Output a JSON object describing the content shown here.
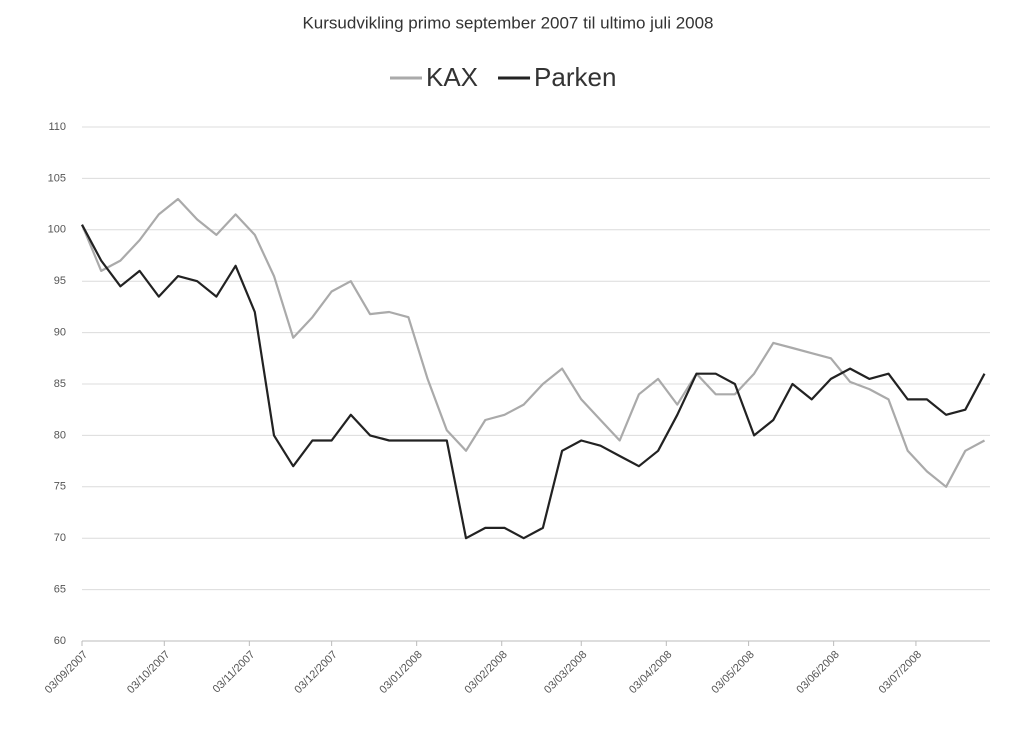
{
  "chart_data": {
    "type": "line",
    "title": "Kursudvikling primo september 2007 til ultimo juli 2008",
    "x": [
      "2007-09-03",
      "2007-09-10",
      "2007-09-17",
      "2007-09-24",
      "2007-10-01",
      "2007-10-08",
      "2007-10-15",
      "2007-10-22",
      "2007-10-29",
      "2007-11-05",
      "2007-11-12",
      "2007-11-19",
      "2007-11-26",
      "2007-12-03",
      "2007-12-10",
      "2007-12-17",
      "2007-12-24",
      "2007-12-31",
      "2008-01-07",
      "2008-01-14",
      "2008-01-21",
      "2008-01-28",
      "2008-02-04",
      "2008-02-11",
      "2008-02-18",
      "2008-02-25",
      "2008-03-03",
      "2008-03-10",
      "2008-03-17",
      "2008-03-24",
      "2008-03-31",
      "2008-04-07",
      "2008-04-14",
      "2008-04-21",
      "2008-04-28",
      "2008-05-05",
      "2008-05-12",
      "2008-05-19",
      "2008-05-26",
      "2008-06-02",
      "2008-06-09",
      "2008-06-16",
      "2008-06-23",
      "2008-06-30",
      "2008-07-07",
      "2008-07-14",
      "2008-07-21",
      "2008-07-28"
    ],
    "series": [
      {
        "name": "KAX",
        "color": "#aaaaaa",
        "values": [
          100.5,
          96,
          97,
          99,
          101.5,
          103,
          101,
          99.5,
          101.5,
          99.5,
          95.5,
          89.5,
          91.5,
          94,
          95,
          91.8,
          92,
          91.5,
          85.5,
          80.5,
          78.5,
          81.5,
          82,
          83,
          85,
          86.5,
          83.5,
          81.5,
          79.5,
          84,
          85.5,
          83,
          86,
          84,
          84,
          86,
          89,
          88.5,
          88,
          87.5,
          85.2,
          84.5,
          83.5,
          78.5,
          76.5,
          75,
          78.5,
          79.5
        ]
      },
      {
        "name": "Parken",
        "color": "#222222",
        "values": [
          100.5,
          97,
          94.5,
          96,
          93.5,
          95.5,
          95,
          93.5,
          96.5,
          92,
          80,
          77,
          79.5,
          79.5,
          82,
          80,
          79.5,
          79.5,
          79.5,
          79.5,
          70,
          71,
          71,
          70,
          71,
          78.5,
          79.5,
          79,
          78,
          77,
          78.5,
          82,
          86,
          86,
          85,
          80,
          81.5,
          85,
          83.5,
          85.5,
          86.5,
          85.5,
          86,
          83.5,
          83.5,
          82,
          82.5,
          86
        ]
      }
    ],
    "xlim": [
      "2007-09-03",
      "2008-07-30"
    ],
    "xticks": [
      {
        "value": "2007-09-03",
        "label": "03/09/2007"
      },
      {
        "value": "2007-10-03",
        "label": "03/10/2007"
      },
      {
        "value": "2007-11-03",
        "label": "03/11/2007"
      },
      {
        "value": "2007-12-03",
        "label": "03/12/2007"
      },
      {
        "value": "2008-01-03",
        "label": "03/01/2008"
      },
      {
        "value": "2008-02-03",
        "label": "03/02/2008"
      },
      {
        "value": "2008-03-03",
        "label": "03/03/2008"
      },
      {
        "value": "2008-04-03",
        "label": "03/04/2008"
      },
      {
        "value": "2008-05-03",
        "label": "03/05/2008"
      },
      {
        "value": "2008-06-03",
        "label": "03/06/2008"
      },
      {
        "value": "2008-07-03",
        "label": "03/07/2008"
      }
    ],
    "ylim": [
      60,
      110
    ],
    "yticks": [
      60,
      65,
      70,
      75,
      80,
      85,
      90,
      95,
      100,
      105,
      110
    ],
    "grid": true,
    "legend": "top"
  }
}
